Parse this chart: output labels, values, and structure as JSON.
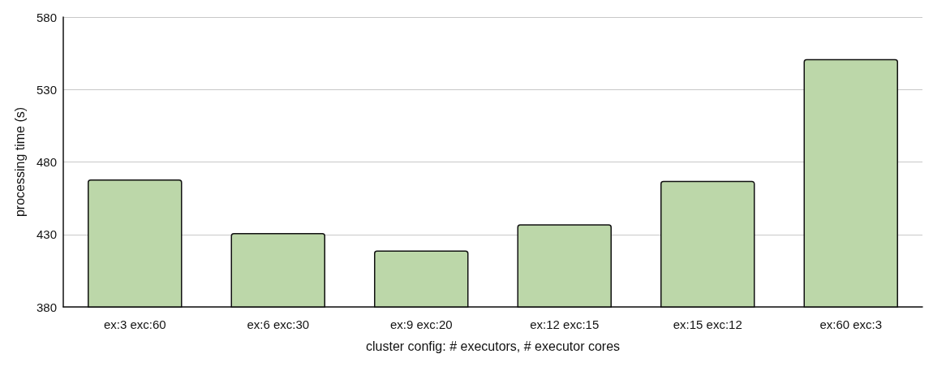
{
  "chart_data": {
    "type": "bar",
    "xlabel": "cluster config: # executors, # executor cores",
    "ylabel": "processing time (s)",
    "categories": [
      "ex:3 exc:60",
      "ex:6 exc:30",
      "ex:9 exc:20",
      "ex:12 exc:15",
      "ex:15 exc:12",
      "ex:60 exc:3"
    ],
    "values": [
      468,
      431,
      419,
      437,
      467,
      551
    ],
    "color": "#bcd7a9",
    "ylim": [
      380,
      580
    ],
    "yticks": [
      380,
      430,
      480,
      530,
      580
    ],
    "grid": "y"
  }
}
